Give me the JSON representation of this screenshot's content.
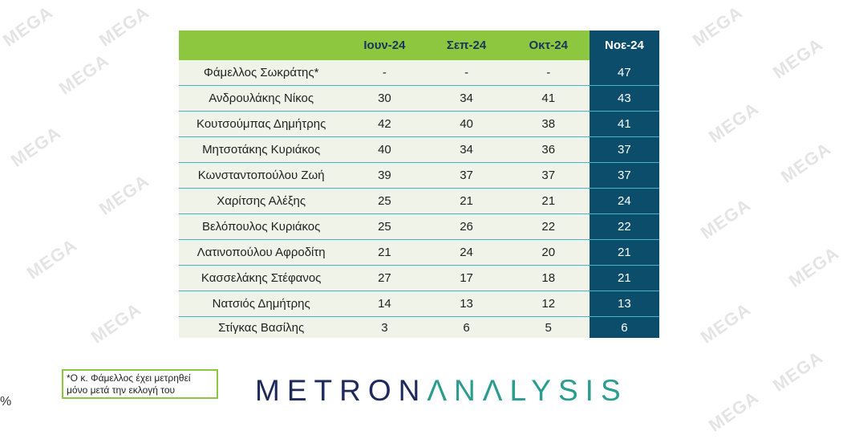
{
  "watermark": "MEGA",
  "chart_data": {
    "type": "table",
    "columns": [
      "",
      "Ιουν-24",
      "Σεπ-24",
      "Οκτ-24",
      "Νοε-24"
    ],
    "rows": [
      {
        "name": "Φάμελλος Σωκράτης*",
        "values": [
          "-",
          "-",
          "-",
          "47"
        ]
      },
      {
        "name": "Ανδρουλάκης Νίκος",
        "values": [
          "30",
          "34",
          "41",
          "43"
        ]
      },
      {
        "name": "Κουτσούμπας Δημήτρης",
        "values": [
          "42",
          "40",
          "38",
          "41"
        ]
      },
      {
        "name": "Μητσοτάκης Κυριάκος",
        "values": [
          "40",
          "34",
          "36",
          "37"
        ]
      },
      {
        "name": "Κωνσταντοπούλου Ζωή",
        "values": [
          "39",
          "37",
          "37",
          "37"
        ]
      },
      {
        "name": "Χαρίτσης Αλέξης",
        "values": [
          "25",
          "21",
          "21",
          "24"
        ]
      },
      {
        "name": "Βελόπουλος Κυριάκος",
        "values": [
          "25",
          "26",
          "22",
          "22"
        ]
      },
      {
        "name": "Λατινοπούλου Αφροδίτη",
        "values": [
          "21",
          "24",
          "20",
          "21"
        ]
      },
      {
        "name": "Κασσελάκης Στέφανος",
        "values": [
          "27",
          "17",
          "18",
          "21"
        ]
      },
      {
        "name": "Νατσιός Δημήτρης",
        "values": [
          "14",
          "13",
          "12",
          "13"
        ]
      },
      {
        "name": "Στίγκας Βασίλης",
        "values": [
          "3",
          "6",
          "5",
          "6"
        ]
      }
    ],
    "colors": {
      "header": "#8dc63f",
      "highlight_column": "#0b4d6b",
      "row_bg": "#eff3e8",
      "row_line": "#47b5c8"
    }
  },
  "footnote": "*Ο κ. Φάμελλος έχει μετρηθεί μόνο μετά την εκλογή του",
  "logo": {
    "part1": "METRON",
    "part2": "ΛNΛLYSIS"
  },
  "percent_sign": "%"
}
